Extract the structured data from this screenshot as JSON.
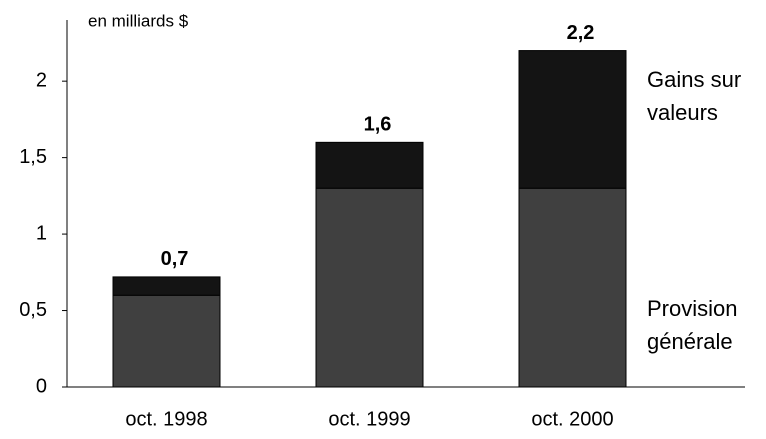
{
  "chart_data": {
    "type": "stacked_bar",
    "axis_label": "en milliards $",
    "categories": [
      "oct. 1998",
      "oct. 1999",
      "oct. 2000"
    ],
    "series": [
      {
        "name": "Provision générale",
        "color": "#404040",
        "values": [
          0.6,
          1.3,
          1.3
        ]
      },
      {
        "name": "Gains sur valeurs",
        "color": "#141414",
        "values": [
          0.12,
          0.3,
          0.9
        ]
      }
    ],
    "totals": [
      0.72,
      1.6,
      2.2
    ],
    "total_labels": [
      "0,7",
      "1,6",
      "2,2"
    ],
    "ylim": [
      0,
      2.4
    ],
    "yticks": [
      0,
      {
        "value": 0.5,
        "label": "0,5"
      },
      1,
      {
        "value": 1.5,
        "label": "1,5"
      },
      2
    ],
    "grid": false
  }
}
